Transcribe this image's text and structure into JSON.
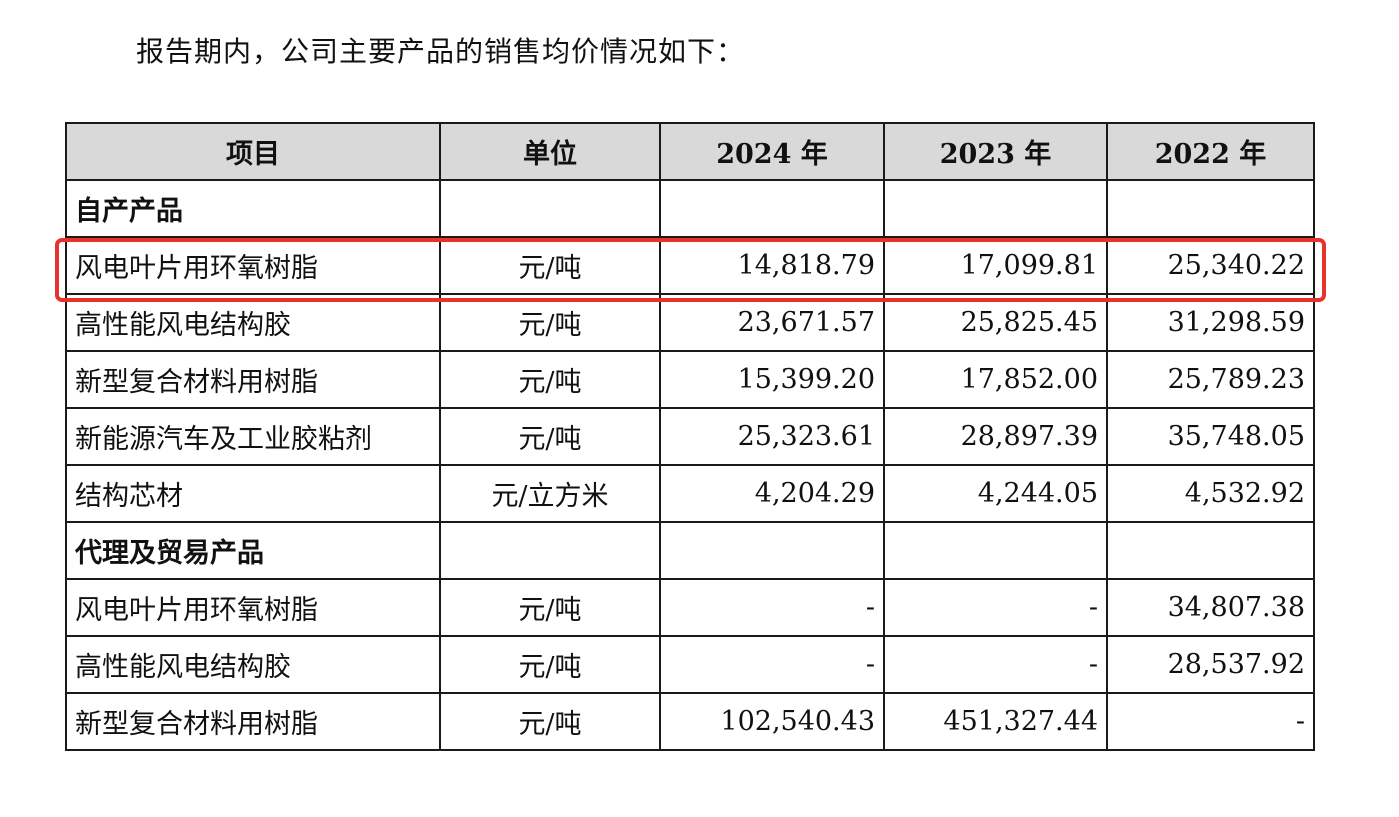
{
  "intro_text": "报告期内，公司主要产品的销售均价情况如下：",
  "table": {
    "headers": [
      "项目",
      "单位",
      "2024 年",
      "2023 年",
      "2022 年"
    ],
    "sections": [
      {
        "title": "自产产品",
        "rows": [
          {
            "item": "风电叶片用环氧树脂",
            "unit": "元/吨",
            "y2024": "14,818.79",
            "y2023": "17,099.81",
            "y2022": "25,340.22",
            "highlighted": true
          },
          {
            "item": "高性能风电结构胶",
            "unit": "元/吨",
            "y2024": "23,671.57",
            "y2023": "25,825.45",
            "y2022": "31,298.59"
          },
          {
            "item": "新型复合材料用树脂",
            "unit": "元/吨",
            "y2024": "15,399.20",
            "y2023": "17,852.00",
            "y2022": "25,789.23"
          },
          {
            "item": "新能源汽车及工业胶粘剂",
            "unit": "元/吨",
            "y2024": "25,323.61",
            "y2023": "28,897.39",
            "y2022": "35,748.05"
          },
          {
            "item": "结构芯材",
            "unit": "元/立方米",
            "y2024": "4,204.29",
            "y2023": "4,244.05",
            "y2022": "4,532.92"
          }
        ]
      },
      {
        "title": "代理及贸易产品",
        "rows": [
          {
            "item": "风电叶片用环氧树脂",
            "unit": "元/吨",
            "y2024": "-",
            "y2023": "-",
            "y2022": "34,807.38"
          },
          {
            "item": "高性能风电结构胶",
            "unit": "元/吨",
            "y2024": "-",
            "y2023": "-",
            "y2022": "28,537.92"
          },
          {
            "item": "新型复合材料用树脂",
            "unit": "元/吨",
            "y2024": "102,540.43",
            "y2023": "451,327.44",
            "y2022": "-"
          }
        ]
      }
    ]
  },
  "highlight_color": "#e8322e",
  "header_bg_color": "#d9d9d9"
}
